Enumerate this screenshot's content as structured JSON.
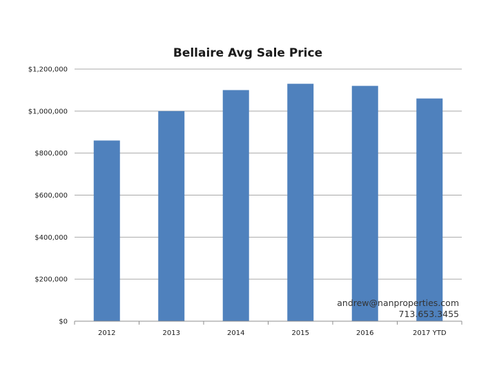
{
  "chart_data": {
    "type": "bar",
    "title": "Bellaire Avg Sale Price",
    "xlabel": "",
    "ylabel": "",
    "categories": [
      "2012",
      "2013",
      "2014",
      "2015",
      "2016",
      "2017 YTD"
    ],
    "values": [
      860000,
      1000000,
      1100000,
      1130000,
      1120000,
      1060000
    ],
    "ylim": [
      0,
      1200000
    ],
    "yticks": [
      0,
      200000,
      400000,
      600000,
      800000,
      1000000,
      1200000
    ],
    "ytick_labels": [
      "$0",
      "$200,000",
      "$400,000",
      "$600,000",
      "$800,000",
      "$1,000,000",
      "$1,200,000"
    ],
    "grid": true,
    "legend": "none",
    "bar_color": "#4f81bd"
  },
  "contact": {
    "email": "andrew@nanproperties.com",
    "phone": "713.653.3455"
  }
}
